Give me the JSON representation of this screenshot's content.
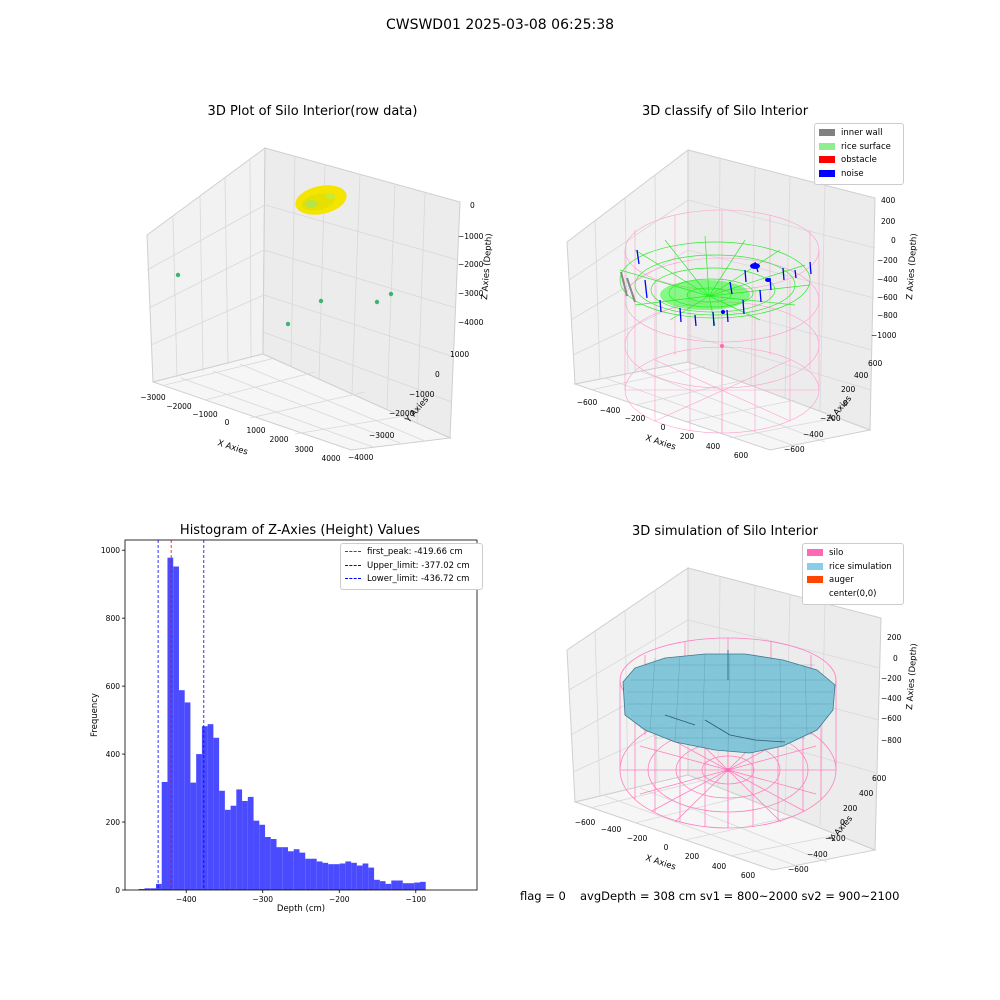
{
  "suptitle": "CWSWD01 2025-03-08 06:25:38",
  "footer": {
    "flag": "flag = 0",
    "stats": "avgDepth = 308 cm  sv1 = 800~2000  sv2 = 900~2100"
  },
  "chart_data": [
    {
      "type": "scatter",
      "projection": "3d",
      "title": "3D Plot of Silo Interior(row data)",
      "xlabel": "X Axies",
      "ylabel": "Y Axies",
      "zlabel": "Z Axies (Depth)",
      "xticks": [
        "−3000",
        "−2000",
        "−1000",
        "0",
        "1000",
        "2000",
        "3000",
        "4000"
      ],
      "yticks": [
        "−4000",
        "−3000",
        "−2000",
        "−1000",
        "0",
        "1000"
      ],
      "zticks": [
        "−4000",
        "−3000",
        "−2000",
        "−1000",
        "0"
      ],
      "xlim": [
        -3000,
        4000
      ],
      "ylim": [
        -4000,
        1000
      ],
      "zlim": [
        -4000,
        0
      ],
      "cluster": {
        "description": "dense yellow point cloud near surface",
        "color": "#f2e600",
        "accent": "#a8e04a"
      },
      "outliers": [
        {
          "x": -2900,
          "y": 0,
          "z": -1500,
          "color": "#3cb371"
        },
        {
          "x": 900,
          "y": -3100,
          "z": -2600,
          "color": "#3cb371"
        },
        {
          "x": 2400,
          "y": -2400,
          "z": -3000,
          "color": "#3cb371"
        },
        {
          "x": 2500,
          "y": -3000,
          "z": -2700,
          "color": "#3cb371"
        },
        {
          "x": 2200,
          "y": -500,
          "z": -3300,
          "color": "#888888"
        }
      ],
      "grid": true
    },
    {
      "type": "scatter",
      "projection": "3d",
      "title": "3D classify of Silo Interior",
      "xlabel": "X Axies",
      "ylabel": "Y Axies",
      "zlabel": "Z Axies (Depth)",
      "xticks": [
        "−600",
        "−400",
        "−200",
        "0",
        "200",
        "400",
        "600"
      ],
      "yticks": [
        "−600",
        "−400",
        "−200",
        "0",
        "200",
        "400",
        "600"
      ],
      "zticks": [
        "−1000",
        "−800",
        "−600",
        "−400",
        "−200",
        "0",
        "200",
        "400"
      ],
      "legend": [
        {
          "label": "inner wall",
          "color": "#808080"
        },
        {
          "label": "rice surface",
          "color": "#90ee90"
        },
        {
          "label": "obstacle",
          "color": "#ff0000"
        },
        {
          "label": "noise",
          "color": "#0000ff"
        }
      ],
      "legend_position": "top-right",
      "grid": true
    },
    {
      "type": "bar",
      "title": "Histogram of Z-Axies (Height) Values",
      "xlabel": "Depth (cm)",
      "ylabel": "Frequency",
      "xlim": [
        -480,
        -20
      ],
      "ylim": [
        0,
        1030
      ],
      "xticks": [
        "−400",
        "−300",
        "−200",
        "−100"
      ],
      "yticks": [
        "0",
        "200",
        "400",
        "600",
        "800",
        "1000"
      ],
      "bin_start": -462,
      "bin_width": 7.5,
      "values": [
        3,
        5,
        5,
        18,
        318,
        978,
        952,
        588,
        552,
        316,
        400,
        482,
        488,
        448,
        292,
        236,
        248,
        296,
        262,
        274,
        204,
        192,
        156,
        150,
        126,
        126,
        114,
        120,
        110,
        92,
        92,
        84,
        80,
        76,
        76,
        78,
        84,
        80,
        72,
        78,
        66,
        30,
        26,
        18,
        28,
        28,
        20,
        20,
        22,
        24
      ],
      "bar_color": "#4a4aff",
      "lines": [
        {
          "label": "first_peak: -419.66 cm",
          "x": -419.66,
          "color": "#ff0000"
        },
        {
          "label": "Upper_limit: -377.02 cm",
          "x": -377.02,
          "color": "#0000ff"
        },
        {
          "label": "Lower_limit: -436.72 cm",
          "x": -436.72,
          "color": "#0000ff"
        }
      ],
      "legend_position": "top-right"
    },
    {
      "type": "area",
      "projection": "3d",
      "title": "3D simulation of Silo Interior",
      "xlabel": "X Axies",
      "ylabel": "Y Axies",
      "zlabel": "Z Axies (Depth)",
      "xticks": [
        "−600",
        "−400",
        "−200",
        "0",
        "200",
        "400",
        "600"
      ],
      "yticks": [
        "−600",
        "−400",
        "−200",
        "0",
        "200",
        "400",
        "600"
      ],
      "zticks": [
        "−800",
        "−600",
        "−400",
        "−200",
        "0",
        "200"
      ],
      "legend": [
        {
          "label": "silo",
          "color": "#ff69b4"
        },
        {
          "label": "rice simulation",
          "color": "#87ceeb"
        },
        {
          "label": "auger",
          "color": "#ff4500"
        },
        {
          "label": "center(0,0)",
          "color": ""
        }
      ],
      "legend_position": "top-right",
      "grid": true
    }
  ]
}
